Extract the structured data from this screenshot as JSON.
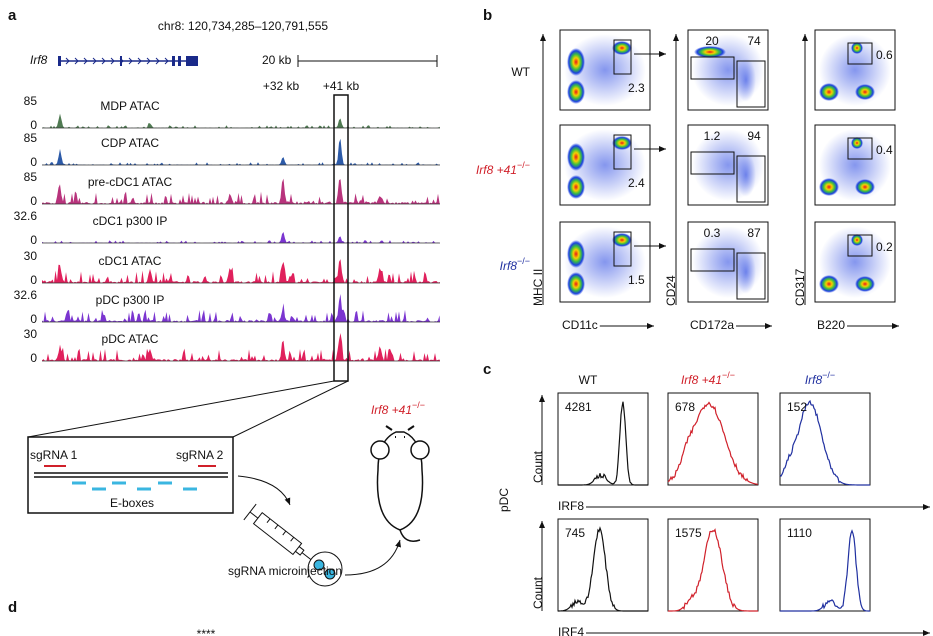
{
  "panel_a": {
    "label": "a",
    "coords": "chr8: 120,734,285–120,791,555",
    "gene": "Irf8",
    "scale": "20 kb",
    "peaks": [
      "+32 kb",
      "+41 kb"
    ],
    "tracks": [
      {
        "name": "MDP ATAC",
        "max": 85,
        "min": 0,
        "color": "#4f7a52"
      },
      {
        "name": "CDP ATAC",
        "max": 85,
        "min": 0,
        "color": "#2c5aa8"
      },
      {
        "name": "pre-cDC1 ATAC",
        "max": 85,
        "min": 0,
        "color": "#b8337c"
      },
      {
        "name": "cDC1 p300 IP",
        "max": 32.6,
        "min": 0,
        "color": "#7b35d0"
      },
      {
        "name": "cDC1 ATAC",
        "max": 30,
        "min": 0,
        "color": "#e0205c"
      },
      {
        "name": "pDC p300 IP",
        "max": 32.6,
        "min": 0,
        "color": "#7b35d0"
      },
      {
        "name": "pDC ATAC",
        "max": 30,
        "min": 0,
        "color": "#e0205c"
      }
    ],
    "sgrna": [
      "sgRNA 1",
      "sgRNA 2"
    ],
    "eboxes": "E-boxes",
    "injection": "sgRNA microinjection",
    "mouse": {
      "gene": "Irf8 +41",
      "sup": "−/−"
    }
  },
  "panel_b": {
    "label": "b",
    "rows": [
      {
        "gene": "WT",
        "sup": ""
      },
      {
        "gene": "Irf8 +41",
        "sup": "−/−"
      },
      {
        "gene": "Irf8",
        "sup": "−/−"
      }
    ],
    "y_axes": [
      "MHC II",
      "CD24",
      "CD317"
    ],
    "x_axes": [
      "CD11c",
      "CD172a",
      "B220"
    ],
    "gates": [
      [
        2.3,
        20,
        74,
        0.6
      ],
      [
        2.4,
        1.2,
        94,
        0.4
      ],
      [
        1.5,
        0.3,
        87,
        0.2
      ]
    ]
  },
  "panel_c": {
    "label": "c",
    "columns": [
      {
        "gene": "WT",
        "sup": ""
      },
      {
        "gene": "Irf8 +41",
        "sup": "−/−"
      },
      {
        "gene": "Irf8",
        "sup": "−/−"
      }
    ],
    "population": "pDC",
    "y_axis": "Count",
    "markers": [
      "IRF8",
      "IRF4"
    ],
    "values": [
      [
        4281,
        678,
        152
      ],
      [
        745,
        1575,
        1110
      ]
    ]
  },
  "panel_d": {
    "label": "d",
    "stars": "****"
  }
}
